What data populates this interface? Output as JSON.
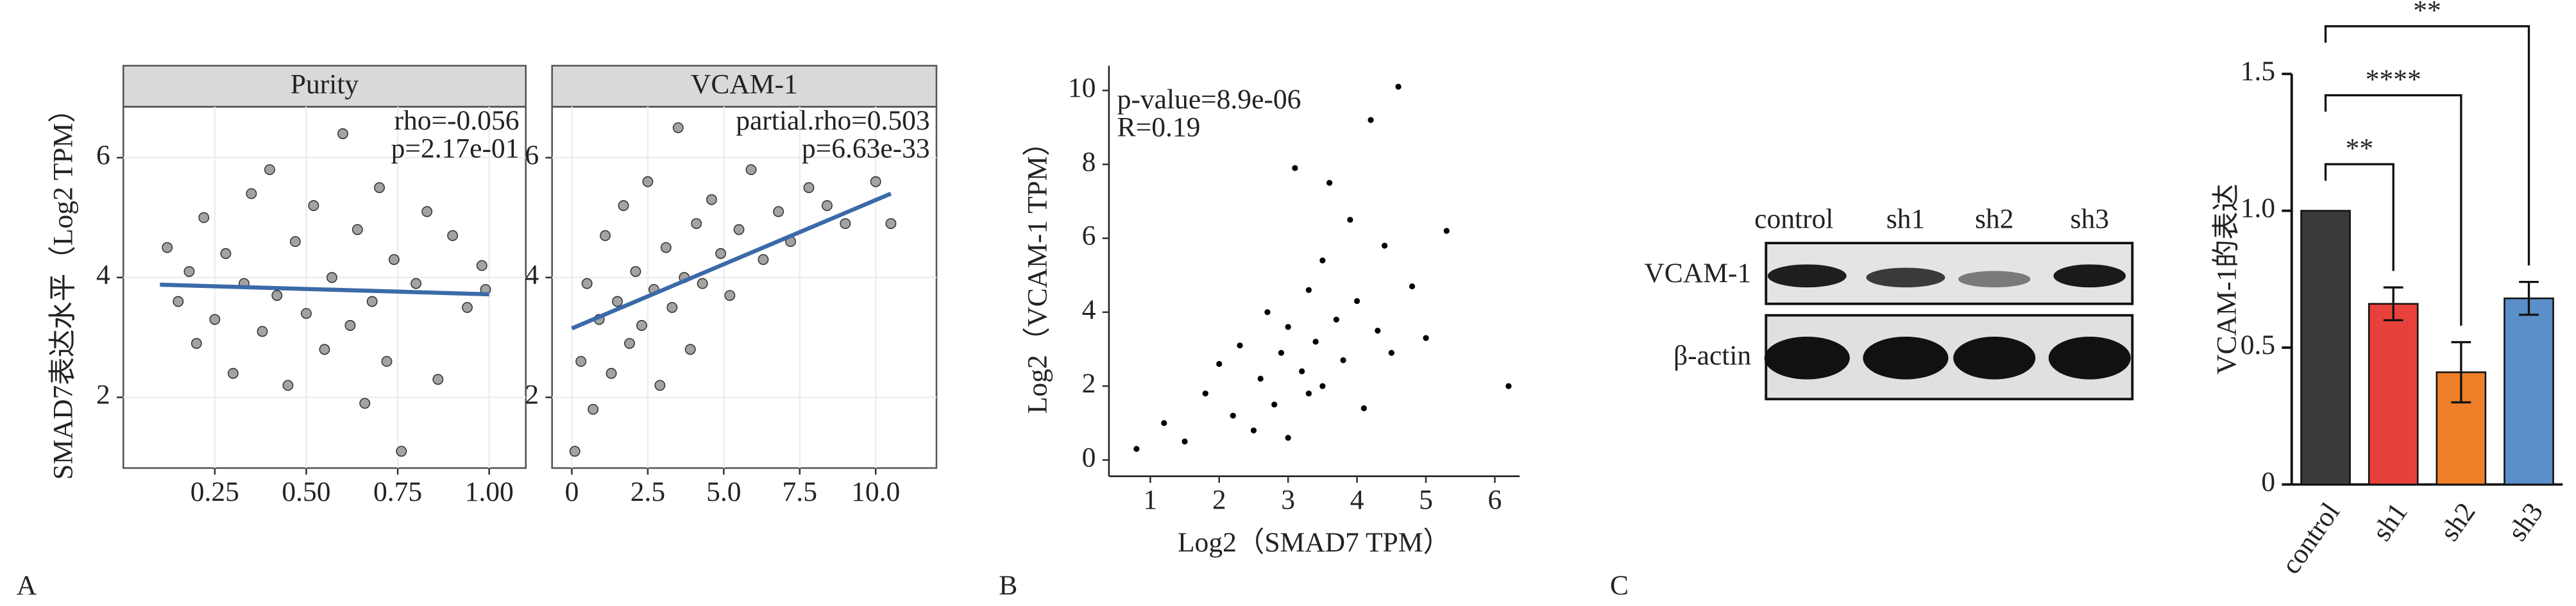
{
  "chart_data": [
    {
      "type": "scatter",
      "facet": true,
      "panel_label": "A",
      "title": "Purity",
      "ylabel": "SMAD7表达水平（Log2 TPM）",
      "x": [
        0.12,
        0.15,
        0.18,
        0.2,
        0.22,
        0.25,
        0.28,
        0.3,
        0.33,
        0.35,
        0.38,
        0.4,
        0.42,
        0.45,
        0.47,
        0.5,
        0.52,
        0.55,
        0.57,
        0.6,
        0.62,
        0.64,
        0.66,
        0.68,
        0.7,
        0.72,
        0.74,
        0.76,
        0.8,
        0.83,
        0.86,
        0.9,
        0.94,
        0.98,
        0.99
      ],
      "values": [
        4.5,
        3.6,
        4.1,
        2.9,
        5.0,
        3.3,
        4.4,
        2.4,
        3.9,
        5.4,
        3.1,
        5.8,
        3.7,
        2.2,
        4.6,
        3.4,
        5.2,
        2.8,
        4.0,
        6.4,
        3.2,
        4.8,
        1.9,
        3.6,
        5.5,
        2.6,
        4.3,
        1.1,
        3.9,
        5.1,
        2.3,
        4.7,
        3.5,
        4.2,
        3.8
      ],
      "fit_x": [
        0.1,
        1.0
      ],
      "fit_y": [
        3.88,
        3.72
      ],
      "annotations": [
        "rho=-0.056",
        "p=2.17e-01"
      ],
      "annotation_color": "#d7301f",
      "point_color": "#8c8c8c",
      "line_color": "#3b6aa8",
      "xlim": [
        0,
        1.1
      ],
      "xticks": [
        0.25,
        {
          "value": 0.5,
          "label": "0.50"
        },
        0.75,
        {
          "value": 1,
          "label": "1.00"
        }
      ],
      "ylim": [
        0.82,
        6.85
      ],
      "yticks": [
        2,
        4,
        6
      ],
      "grid": true
    },
    {
      "type": "scatter",
      "facet": true,
      "title": "VCAM-1",
      "x": [
        0.1,
        0.3,
        0.5,
        0.7,
        0.9,
        1.1,
        1.3,
        1.5,
        1.7,
        1.9,
        2.1,
        2.3,
        2.5,
        2.7,
        2.9,
        3.1,
        3.3,
        3.5,
        3.7,
        3.9,
        4.1,
        4.3,
        4.6,
        4.9,
        5.2,
        5.5,
        5.9,
        6.3,
        6.8,
        7.2,
        7.8,
        8.4,
        9.0,
        10.0,
        10.5
      ],
      "values": [
        1.1,
        2.6,
        3.9,
        1.8,
        3.3,
        4.7,
        2.4,
        3.6,
        5.2,
        2.9,
        4.1,
        3.2,
        5.6,
        3.8,
        2.2,
        4.5,
        3.5,
        6.5,
        4.0,
        2.8,
        4.9,
        3.9,
        5.3,
        4.4,
        3.7,
        4.8,
        5.8,
        4.3,
        5.1,
        4.6,
        5.5,
        5.2,
        4.9,
        5.6,
        4.9
      ],
      "fit_x": [
        0,
        10.5
      ],
      "fit_y": [
        3.15,
        5.4
      ],
      "annotations": [
        "partial.rho=0.503",
        "p=6.63e-33"
      ],
      "annotation_color": "#d7301f",
      "point_color": "#8c8c8c",
      "line_color": "#3b6aa8",
      "xlim": [
        -0.65,
        12
      ],
      "xticks": [
        0,
        2.5,
        {
          "value": 5,
          "label": "5.0"
        },
        7.5,
        {
          "value": 10,
          "label": "10.0"
        }
      ],
      "ylim": [
        0.82,
        6.85
      ],
      "yticks": [
        2,
        4,
        6
      ],
      "grid": true
    },
    {
      "type": "scatter",
      "panel_label": "B",
      "xlabel": "Log2（SMAD7 TPM）",
      "ylabel": "Log2（VCAM-1 TPM）",
      "x": [
        0.8,
        1.2,
        1.5,
        1.8,
        2.0,
        2.2,
        2.3,
        2.5,
        2.6,
        2.7,
        2.8,
        2.9,
        3.0,
        3.0,
        3.1,
        3.2,
        3.3,
        3.3,
        3.4,
        3.5,
        3.5,
        3.6,
        3.7,
        3.8,
        3.9,
        4.0,
        4.1,
        4.2,
        4.3,
        4.4,
        4.5,
        4.6,
        4.8,
        5.0,
        5.3,
        6.2
      ],
      "values": [
        0.3,
        1.0,
        0.5,
        1.8,
        2.6,
        1.2,
        3.1,
        0.8,
        2.2,
        4.0,
        1.5,
        2.9,
        3.6,
        0.6,
        7.9,
        2.4,
        1.8,
        4.6,
        3.2,
        2.0,
        5.4,
        7.5,
        3.8,
        2.7,
        6.5,
        4.3,
        1.4,
        9.2,
        3.5,
        5.8,
        2.9,
        10.1,
        4.7,
        3.3,
        6.2,
        2.0
      ],
      "annotations": [
        "p-value=8.9e-06",
        "R=0.19"
      ],
      "annotation_color": "#000000",
      "point_color": "#000000",
      "xlim": [
        0.4,
        6.36
      ],
      "xticks": [
        1,
        2,
        3,
        4,
        5,
        6
      ],
      "ylim": [
        -0.44,
        10.67
      ],
      "yticks": [
        0,
        2,
        4,
        6,
        8,
        10
      ],
      "grid": false
    },
    {
      "type": "bar",
      "panel_label": "C",
      "ylabel": "VCAM-1的表达",
      "categories": [
        "control",
        "sh1",
        "sh2",
        "sh3"
      ],
      "values": [
        1,
        0.66,
        0.41,
        0.68
      ],
      "errors": [
        0,
        0.06,
        0.11,
        0.06
      ],
      "colors": [
        "#3a3a3a",
        "#e8413c",
        "#f07f2a",
        "#5b8fc9"
      ],
      "ylim": [
        0,
        1.5
      ],
      "yticks": [
        0,
        0.5,
        {
          "value": 1,
          "label": "1.0"
        },
        1.5
      ],
      "brackets": [
        {
          "from": 0,
          "to": 1,
          "label": "**"
        },
        {
          "from": 0,
          "to": 2,
          "label": "****"
        },
        {
          "from": 0,
          "to": 3,
          "label": "**"
        }
      ]
    }
  ],
  "blot": {
    "lanes": [
      "control",
      "sh1",
      "sh2",
      "sh3"
    ],
    "rows": [
      "VCAM-1",
      "β-actin"
    ]
  }
}
